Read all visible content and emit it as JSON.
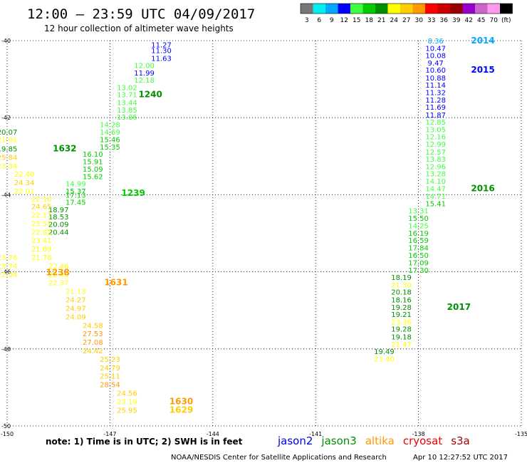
{
  "chart_data": {
    "type": "scatter",
    "title": "12:00 — 23:59 UTC 04/09/2017",
    "subtitle": "12 hour collection of altimeter wave heights",
    "xlim": [
      -150,
      -135
    ],
    "ylim": [
      -50,
      -40
    ],
    "x_ticks": [
      "-150",
      "-147",
      "-144",
      "-141",
      "-138",
      "-135"
    ],
    "y_ticks": [
      "-40",
      "-42",
      "-44",
      "-46",
      "-48",
      "-50"
    ],
    "grid": true,
    "colorbar": {
      "labels": [
        "3",
        "6",
        "9",
        "12",
        "15",
        "18",
        "21",
        "24",
        "27",
        "30",
        "33",
        "36",
        "39",
        "42",
        "45",
        "70",
        "(ft)"
      ],
      "colors": [
        "#777777",
        "#00f0f0",
        "#00a8ff",
        "#0000ff",
        "#40ff40",
        "#00cc00",
        "#009000",
        "#ffff00",
        "#ffcc00",
        "#ff9900",
        "#ff0000",
        "#cc0000",
        "#990000",
        "#9900cc",
        "#cc66cc",
        "#ff99ee",
        "#000000"
      ]
    },
    "tracks": [
      {
        "points": [
          {
            "x": -145.5,
            "y": -40.1,
            "v": "11.27"
          },
          {
            "x": -145.5,
            "y": -40.25,
            "v": "11.30"
          },
          {
            "x": -145.5,
            "y": -40.45,
            "v": "11.63"
          },
          {
            "x": -146.0,
            "y": -40.64,
            "v": "12.00"
          },
          {
            "x": -146.0,
            "y": -40.83,
            "v": "11.99"
          },
          {
            "x": -146.0,
            "y": -41.02,
            "v": "12.18"
          },
          {
            "x": -146.5,
            "y": -41.21,
            "v": "13.02"
          },
          {
            "x": -146.5,
            "y": -41.4,
            "v": "13.71"
          },
          {
            "x": -146.5,
            "y": -41.6,
            "v": "13.44"
          },
          {
            "x": -146.5,
            "y": -41.79,
            "v": "13.85"
          },
          {
            "x": -146.5,
            "y": -41.98,
            "v": "13.86"
          },
          {
            "x": -147.0,
            "y": -42.17,
            "v": "14.28"
          },
          {
            "x": -147.0,
            "y": -42.37,
            "v": "14.69"
          },
          {
            "x": -147.0,
            "y": -42.56,
            "v": "15.46"
          },
          {
            "x": -147.0,
            "y": -42.75,
            "v": "15.35"
          },
          {
            "x": -147.5,
            "y": -42.94,
            "v": "16.10"
          },
          {
            "x": -147.5,
            "y": -43.13,
            "v": "15.91"
          },
          {
            "x": -147.5,
            "y": -43.33,
            "v": "15.09"
          },
          {
            "x": -147.5,
            "y": -43.52,
            "v": "15.62"
          },
          {
            "x": -148.0,
            "y": -43.71,
            "v": "14.99"
          },
          {
            "x": -148.0,
            "y": -43.9,
            "v": "15.37"
          },
          {
            "x": -148.0,
            "y": -44.0,
            "v": "17.13"
          },
          {
            "x": -148.0,
            "y": -44.19,
            "v": "17.45"
          },
          {
            "x": -148.5,
            "y": -44.38,
            "v": "18.97"
          },
          {
            "x": -148.5,
            "y": -44.57,
            "v": "18.53"
          },
          {
            "x": -148.5,
            "y": -44.76,
            "v": "20.09"
          },
          {
            "x": -148.5,
            "y": -44.96,
            "v": "20.44"
          }
        ],
        "labels": [
          {
            "x": -146.5,
            "y": -41.4,
            "text": "1240"
          },
          {
            "x": -147.0,
            "y": -43.96,
            "text": "1239"
          }
        ]
      },
      {
        "points": [
          {
            "x": -150.0,
            "y": -42.37,
            "v": "20.07"
          },
          {
            "x": -150.0,
            "y": -42.56,
            "v": "21.01"
          },
          {
            "x": -150.0,
            "y": -42.8,
            "v": "19.85"
          },
          {
            "x": -150.0,
            "y": -43.02,
            "v": "25.84"
          },
          {
            "x": -150.0,
            "y": -43.24,
            "v": "23.34"
          },
          {
            "x": -149.5,
            "y": -43.46,
            "v": "22.40"
          },
          {
            "x": -149.5,
            "y": -43.68,
            "v": "24.34"
          },
          {
            "x": -149.5,
            "y": -43.9,
            "v": "22.01"
          },
          {
            "x": -149.0,
            "y": -44.1,
            "v": "22.10"
          },
          {
            "x": -149.0,
            "y": -44.3,
            "v": "24.65"
          },
          {
            "x": -149.0,
            "y": -44.52,
            "v": "22.17"
          },
          {
            "x": -149.0,
            "y": -44.74,
            "v": "23.57"
          },
          {
            "x": -149.0,
            "y": -44.96,
            "v": "22.82"
          },
          {
            "x": -149.0,
            "y": -45.18,
            "v": "23.41"
          },
          {
            "x": -149.0,
            "y": -45.4,
            "v": "21.89"
          },
          {
            "x": -150.0,
            "y": -45.62,
            "v": "23.76"
          },
          {
            "x": -149.0,
            "y": -45.62,
            "v": "21.78"
          },
          {
            "x": -150.0,
            "y": -45.84,
            "v": "23.74"
          },
          {
            "x": -148.5,
            "y": -45.84,
            "v": "22.46"
          },
          {
            "x": -150.0,
            "y": -46.06,
            "v": "22.04"
          },
          {
            "x": -148.5,
            "y": -46.06,
            "v": "22.48"
          }
        ],
        "labels": [
          {
            "x": -149.0,
            "y": -42.8,
            "text": "1632"
          },
          {
            "x": -149.2,
            "y": -46.02,
            "text": "1238"
          }
        ]
      },
      {
        "points": [
          {
            "x": -148.5,
            "y": -46.28,
            "v": "22.37"
          },
          {
            "x": -148.0,
            "y": -46.5,
            "v": "21.13"
          },
          {
            "x": -148.0,
            "y": -46.72,
            "v": "24.27"
          },
          {
            "x": -148.0,
            "y": -46.94,
            "v": "24.97"
          },
          {
            "x": -148.0,
            "y": -47.16,
            "v": "24.09"
          },
          {
            "x": -147.5,
            "y": -47.38,
            "v": "24.58"
          },
          {
            "x": -147.5,
            "y": -47.6,
            "v": "27.53"
          },
          {
            "x": -147.5,
            "y": -47.82,
            "v": "27.08"
          },
          {
            "x": -147.5,
            "y": -48.04,
            "v": "24.42"
          },
          {
            "x": -147.0,
            "y": -48.26,
            "v": "25.23"
          },
          {
            "x": -147.0,
            "y": -48.48,
            "v": "24.79"
          },
          {
            "x": -147.0,
            "y": -48.7,
            "v": "25.11"
          },
          {
            "x": -147.0,
            "y": -48.92,
            "v": "28.54"
          },
          {
            "x": -146.5,
            "y": -49.14,
            "v": "24.56"
          },
          {
            "x": -146.5,
            "y": -49.36,
            "v": "23.19"
          },
          {
            "x": -146.5,
            "y": -49.58,
            "v": "25.95"
          }
        ],
        "labels": [
          {
            "x": -147.5,
            "y": -46.28,
            "text": "1631"
          },
          {
            "x": -145.6,
            "y": -49.36,
            "text": "1630"
          },
          {
            "x": -145.6,
            "y": -49.58,
            "text": "1629"
          }
        ]
      },
      {
        "points": [
          {
            "x": -137.5,
            "y": -40.0,
            "v": "8.36"
          },
          {
            "x": -137.5,
            "y": -40.19,
            "v": "10.47"
          },
          {
            "x": -137.5,
            "y": -40.38,
            "v": "10.08"
          },
          {
            "x": -137.5,
            "y": -40.57,
            "v": "9.47"
          },
          {
            "x": -137.5,
            "y": -40.76,
            "v": "10.60"
          },
          {
            "x": -137.5,
            "y": -40.96,
            "v": "10.88"
          },
          {
            "x": -137.5,
            "y": -41.15,
            "v": "11.14"
          },
          {
            "x": -137.5,
            "y": -41.34,
            "v": "11.32"
          },
          {
            "x": -137.5,
            "y": -41.53,
            "v": "11.28"
          },
          {
            "x": -137.5,
            "y": -41.72,
            "v": "11.69"
          },
          {
            "x": -137.5,
            "y": -41.92,
            "v": "11.87"
          },
          {
            "x": -137.5,
            "y": -42.11,
            "v": "12.85"
          },
          {
            "x": -137.5,
            "y": -42.3,
            "v": "13.05"
          },
          {
            "x": -137.5,
            "y": -42.49,
            "v": "12.16"
          },
          {
            "x": -137.5,
            "y": -42.68,
            "v": "12.99"
          },
          {
            "x": -137.5,
            "y": -42.88,
            "v": "12.57"
          },
          {
            "x": -137.5,
            "y": -43.07,
            "v": "13.83"
          },
          {
            "x": -137.5,
            "y": -43.26,
            "v": "12.96"
          },
          {
            "x": -137.5,
            "y": -43.45,
            "v": "13.28"
          },
          {
            "x": -137.5,
            "y": -43.64,
            "v": "14.10"
          },
          {
            "x": -137.5,
            "y": -43.84,
            "v": "14.47"
          },
          {
            "x": -137.5,
            "y": -44.03,
            "v": "14.71"
          },
          {
            "x": -137.5,
            "y": -44.22,
            "v": "15.41"
          },
          {
            "x": -138.0,
            "y": -44.41,
            "v": "13.31"
          },
          {
            "x": -138.0,
            "y": -44.6,
            "v": "15.50"
          },
          {
            "x": -138.0,
            "y": -44.8,
            "v": "14.25"
          },
          {
            "x": -138.0,
            "y": -44.99,
            "v": "16.19"
          },
          {
            "x": -138.0,
            "y": -45.18,
            "v": "16.59"
          },
          {
            "x": -138.0,
            "y": -45.37,
            "v": "17.84"
          },
          {
            "x": -138.0,
            "y": -45.56,
            "v": "16.50"
          },
          {
            "x": -138.0,
            "y": -45.76,
            "v": "17.09"
          },
          {
            "x": -138.0,
            "y": -45.95,
            "v": "17.30"
          },
          {
            "x": -138.5,
            "y": -46.14,
            "v": "18.19"
          },
          {
            "x": -138.5,
            "y": -46.33,
            "v": "21.30"
          },
          {
            "x": -138.5,
            "y": -46.52,
            "v": "20.18"
          },
          {
            "x": -138.5,
            "y": -46.72,
            "v": "18.16"
          },
          {
            "x": -138.5,
            "y": -46.91,
            "v": "19.28"
          },
          {
            "x": -138.5,
            "y": -47.1,
            "v": "19.21"
          },
          {
            "x": -138.5,
            "y": -47.29,
            "v": "23.36"
          },
          {
            "x": -138.5,
            "y": -47.48,
            "v": "19.28"
          },
          {
            "x": -138.5,
            "y": -47.68,
            "v": "19.18"
          },
          {
            "x": -138.5,
            "y": -47.87,
            "v": "21.47"
          },
          {
            "x": -139.0,
            "y": -48.06,
            "v": "19.49"
          },
          {
            "x": -139.0,
            "y": -48.25,
            "v": "21.40"
          }
        ],
        "labels": [
          {
            "x": -136.8,
            "y": -40.0,
            "text": "2014"
          },
          {
            "x": -136.8,
            "y": -40.76,
            "text": "2015"
          },
          {
            "x": -136.8,
            "y": -43.84,
            "text": "2016"
          },
          {
            "x": -137.5,
            "y": -46.91,
            "text": "2017"
          }
        ]
      }
    ]
  },
  "note": "note: 1) Time is in UTC; 2) SWH is in feet",
  "satellites": [
    {
      "name": "jason2",
      "color": "#0000ee"
    },
    {
      "name": "jason3",
      "color": "#009000"
    },
    {
      "name": "altika",
      "color": "#ff9900"
    },
    {
      "name": "cryosat",
      "color": "#ee0000"
    },
    {
      "name": "s3a",
      "color": "#990000"
    }
  ],
  "credit": "NOAA/NESDIS Center for Satellite Applications and Research",
  "timestamp": "Apr 10 12:27:52 UTC 2017"
}
